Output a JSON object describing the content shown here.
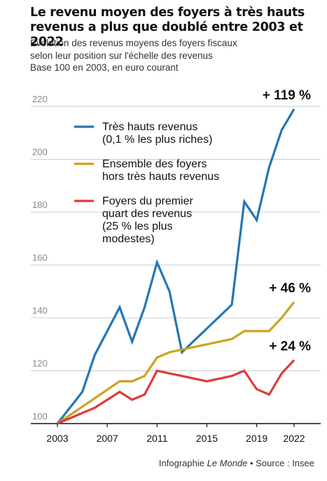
{
  "header": {
    "title": "Le revenu moyen des foyers à très hauts revenus a plus que doublé entre 2003 et 2022",
    "subtitle_lines": [
      "Evolution des revenus moyens des foyers fiscaux",
      "selon leur position sur l'échelle des revenus",
      "Base 100 en 2003, en euro courant"
    ]
  },
  "footer": {
    "prefix": "Infographie ",
    "brand": "Le Monde",
    "separator": " • ",
    "source": "Source : Insee"
  },
  "colors": {
    "tres_hauts": "#2277b4",
    "ensemble": "#cda21f",
    "premier_quart": "#df3b3a",
    "grid": "#cccccc",
    "axis": "#111111"
  },
  "chart_data": {
    "type": "line",
    "ylim": [
      100,
      220
    ],
    "xlim": [
      2003,
      2022
    ],
    "yticks": [
      100,
      120,
      140,
      160,
      180,
      200,
      220
    ],
    "xticks": [
      2003,
      2007,
      2011,
      2015,
      2019,
      2022
    ],
    "grid": true,
    "legend_position": "top-left",
    "series": [
      {
        "name": "Très hauts revenus (0,1 % les plus riches)",
        "legend_lines": [
          "Très hauts revenus",
          "(0,1 % les plus riches)"
        ],
        "color": "#2277b4",
        "x": [
          2003,
          2005,
          2006,
          2007,
          2008,
          2009,
          2010,
          2011,
          2012,
          2013,
          2017,
          2018,
          2019,
          2020,
          2021,
          2022
        ],
        "y": [
          100,
          112,
          126,
          135,
          144,
          131,
          144,
          161,
          150,
          127,
          145,
          184,
          177,
          197,
          211,
          219
        ]
      },
      {
        "name": "Ensemble des foyers hors très hauts revenus",
        "legend_lines": [
          "Ensemble des foyers",
          "hors très hauts revenus"
        ],
        "color": "#cda21f",
        "x": [
          2003,
          2008,
          2009,
          2010,
          2011,
          2012,
          2013,
          2014,
          2015,
          2017,
          2018,
          2019,
          2020,
          2021,
          2022
        ],
        "y": [
          100,
          116,
          116,
          118,
          125,
          127,
          128,
          129,
          130,
          132,
          135,
          135,
          135,
          140,
          146
        ]
      },
      {
        "name": "Foyers du premier quart des revenus (25 % les plus modestes)",
        "legend_lines": [
          "Foyers du premier",
          "quart des revenus",
          "(25 % les plus",
          "modestes)"
        ],
        "color": "#df3b3a",
        "x": [
          2003,
          2005,
          2006,
          2007,
          2008,
          2009,
          2010,
          2011,
          2012,
          2013,
          2014,
          2015,
          2016,
          2017,
          2018,
          2019,
          2020,
          2021,
          2022
        ],
        "y": [
          100,
          104,
          106,
          109,
          112,
          109,
          111,
          120,
          119,
          118,
          117,
          116,
          117,
          118,
          120,
          113,
          111,
          119,
          124
        ]
      }
    ],
    "annotations": [
      {
        "text": "+ 119 %",
        "series": 0
      },
      {
        "text": "+ 46 %",
        "series": 1
      },
      {
        "text": "+ 24 %",
        "series": 2
      }
    ]
  }
}
